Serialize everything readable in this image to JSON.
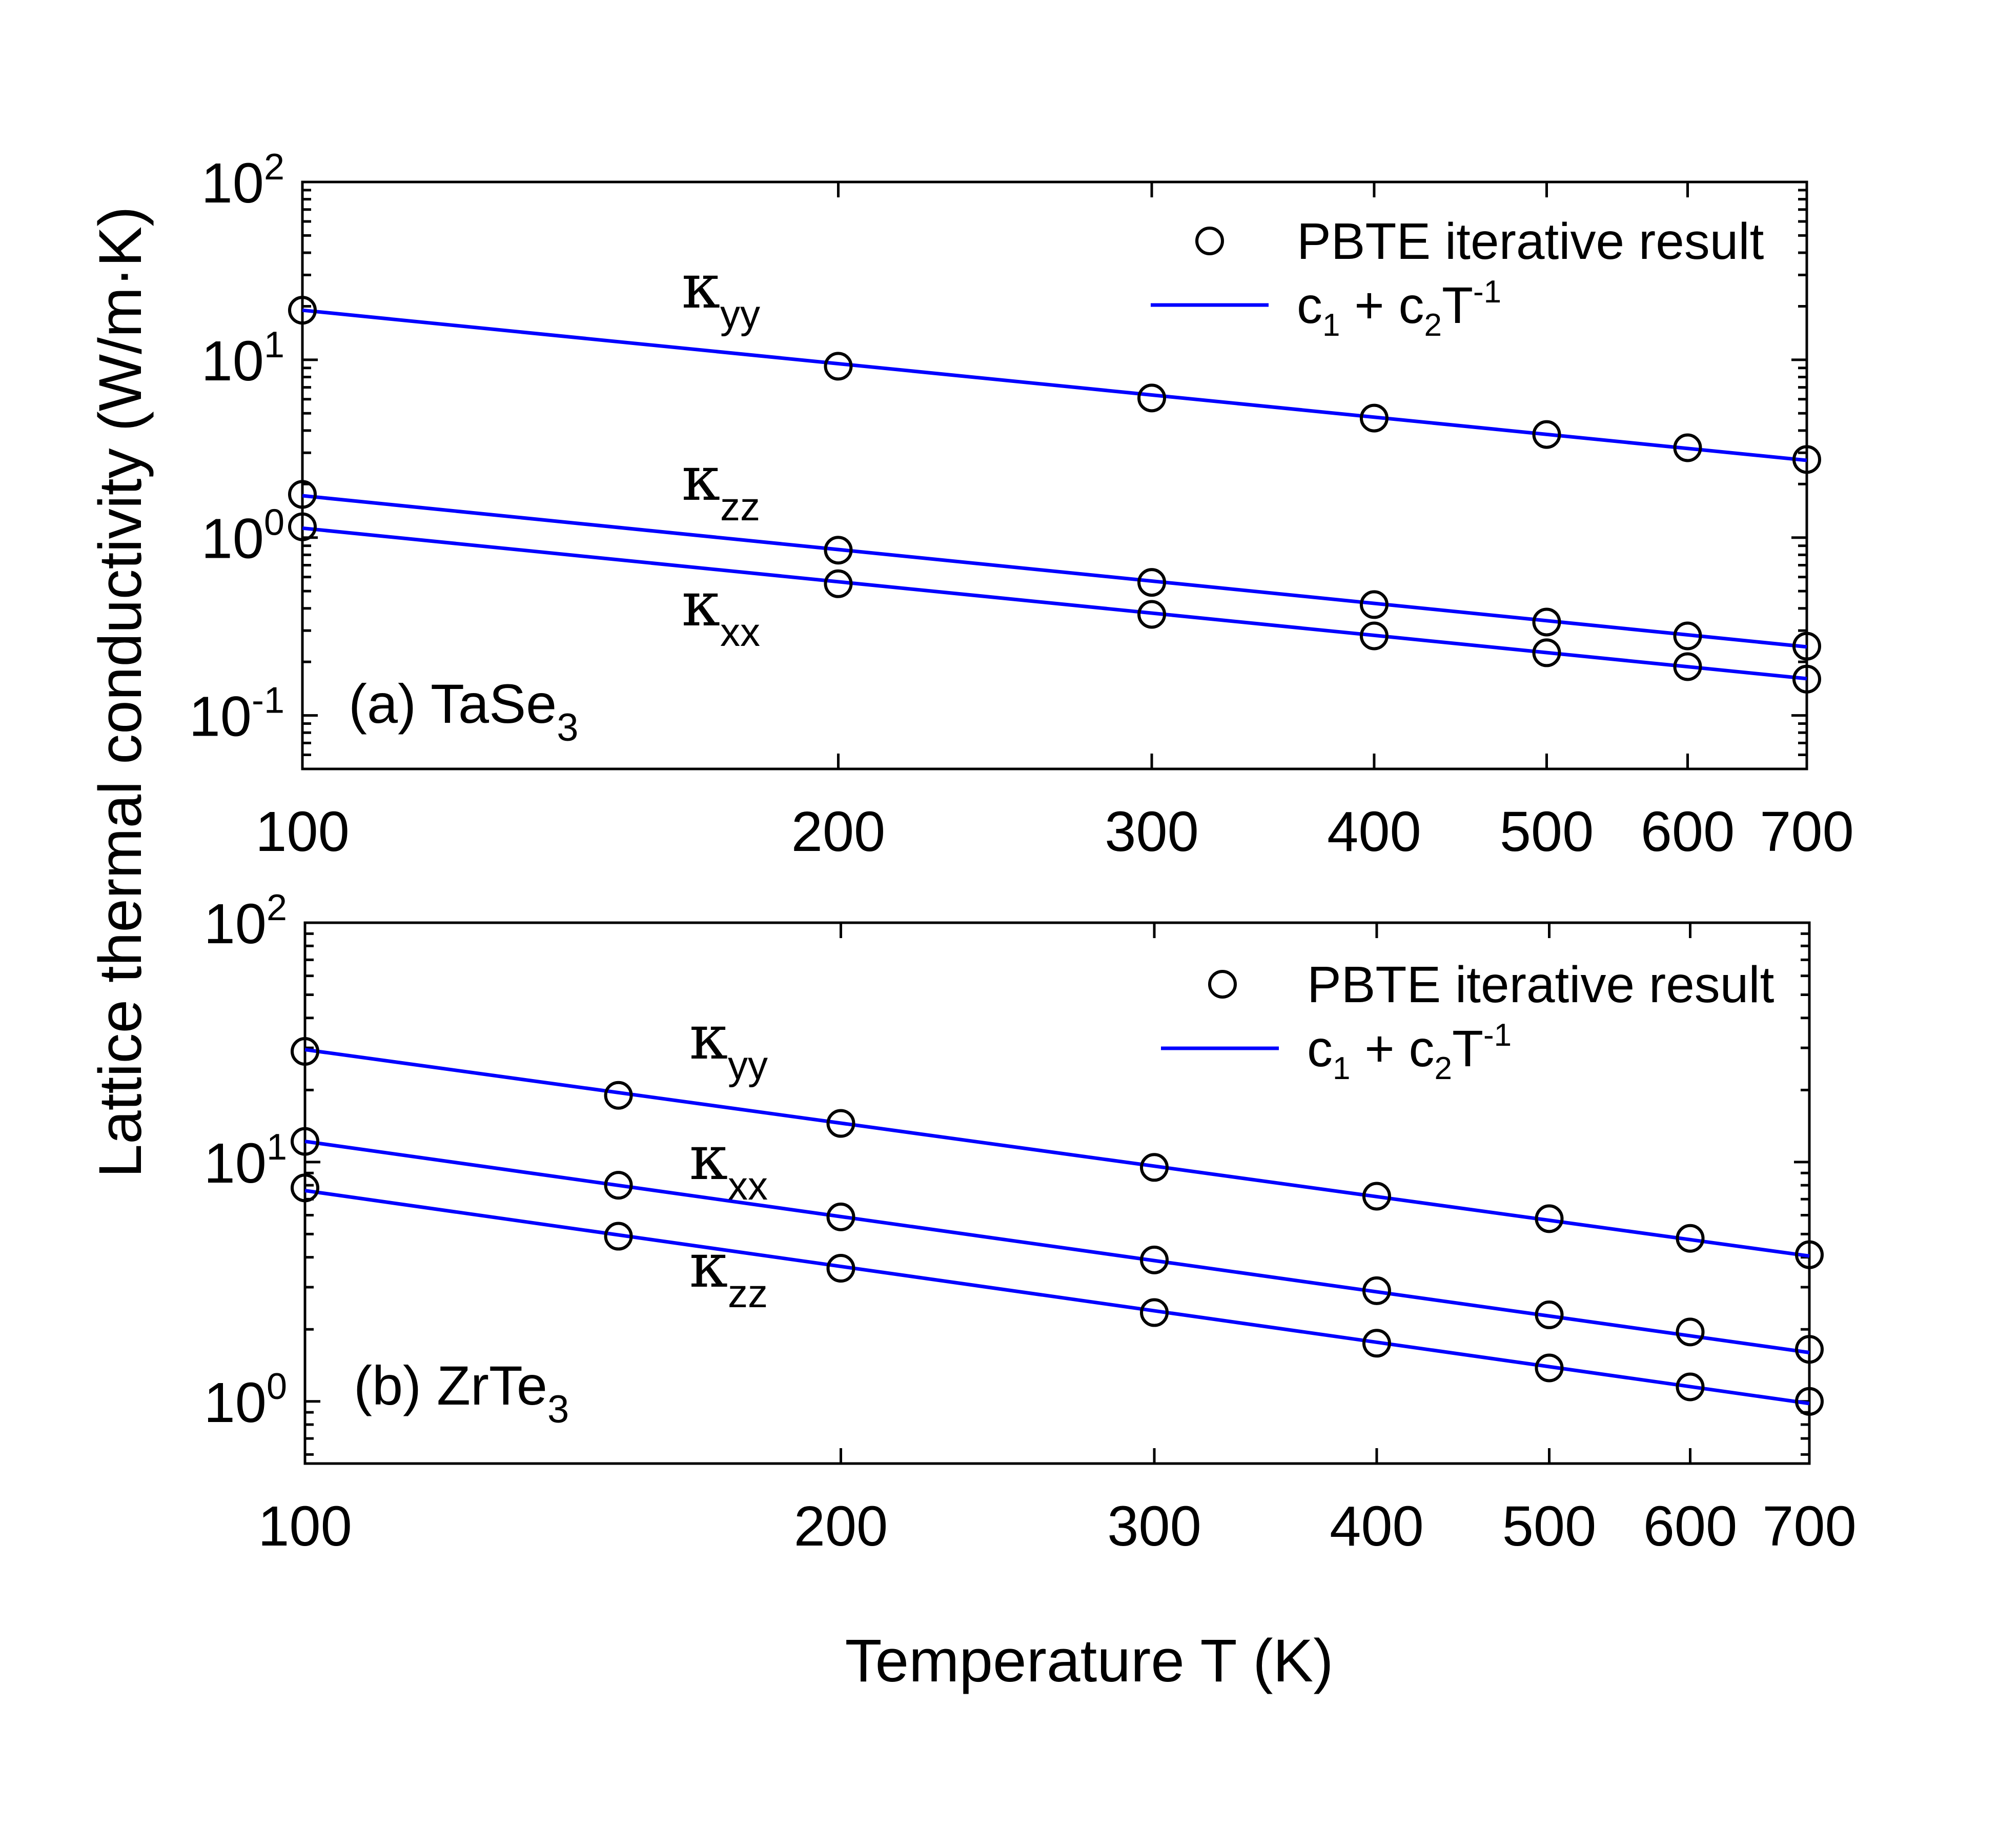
{
  "chart_data": {
    "ylabel": "Lattice thermal conductivity (W/m·K)",
    "xlabel": "Temperature T (K)",
    "line_color": "#0000ff",
    "marker_color": "#000000",
    "panels": [
      {
        "type": "scatter",
        "scale": "log-log",
        "label_prefix": "(a) TaSe",
        "label_subscript": "3",
        "legend": {
          "marker_label": "PBTE iterative result",
          "line_label_c": "c",
          "line_label_sub1": "1",
          "line_label_plus": " + c",
          "line_label_sub2": "2",
          "line_label_T": "T",
          "line_label_sup": "-1",
          "placement": "top-right"
        },
        "xlim": [
          100,
          700
        ],
        "ylim": [
          0.05,
          100
        ],
        "x_ticks": [
          100,
          200,
          300,
          400,
          500,
          600,
          700
        ],
        "y_ticks": [
          {
            "value": 0.1,
            "base": "10",
            "exp": "-1"
          },
          {
            "value": 1,
            "base": "10",
            "exp": "0"
          },
          {
            "value": 10,
            "base": "10",
            "exp": "1"
          },
          {
            "value": 100,
            "base": "10",
            "exp": "2"
          }
        ],
        "series": [
          {
            "name": "κyy",
            "symbol": "κ",
            "sub": "yy",
            "x": [
              100,
              200,
              300,
              400,
              500,
              600,
              700
            ],
            "y": [
              19,
              9.2,
              6.1,
              4.7,
              3.8,
              3.2,
              2.75
            ],
            "fit": [
              19,
              2.72
            ]
          },
          {
            "name": "κzz",
            "symbol": "κ",
            "sub": "zz",
            "x": [
              100,
              200,
              300,
              400,
              500,
              600,
              700
            ],
            "y": [
              1.75,
              0.85,
              0.56,
              0.42,
              0.335,
              0.28,
              0.245
            ],
            "fit": [
              1.72,
              0.243
            ]
          },
          {
            "name": "κxx",
            "symbol": "κ",
            "sub": "xx",
            "x": [
              100,
              200,
              300,
              400,
              500,
              600,
              700
            ],
            "y": [
              1.15,
              0.55,
              0.37,
              0.28,
              0.225,
              0.188,
              0.16
            ],
            "fit": [
              1.13,
              0.161
            ]
          }
        ]
      },
      {
        "type": "scatter",
        "scale": "log-log",
        "label_prefix": "(b) ZrTe",
        "label_subscript": "3",
        "legend": {
          "marker_label": "PBTE iterative result",
          "line_label_c": "c",
          "line_label_sub1": "1",
          "line_label_plus": " + c",
          "line_label_sub2": "2",
          "line_label_T": "T",
          "line_label_sup": "-1",
          "placement": "top-right"
        },
        "xlim": [
          100,
          700
        ],
        "ylim": [
          0.55,
          100
        ],
        "x_ticks": [
          100,
          200,
          300,
          400,
          500,
          600,
          700
        ],
        "y_ticks": [
          {
            "value": 1,
            "base": "10",
            "exp": "0"
          },
          {
            "value": 10,
            "base": "10",
            "exp": "1"
          },
          {
            "value": 100,
            "base": "10",
            "exp": "2"
          }
        ],
        "series": [
          {
            "name": "κyy",
            "symbol": "κ",
            "sub": "yy",
            "x": [
              100,
              150,
              200,
              300,
              400,
              500,
              600,
              700
            ],
            "y": [
              29,
              19,
              14.5,
              9.5,
              7.2,
              5.8,
              4.8,
              4.1
            ],
            "fit": [
              29.5,
              4.05
            ]
          },
          {
            "name": "κxx",
            "symbol": "κ",
            "sub": "xx",
            "x": [
              100,
              150,
              200,
              300,
              400,
              500,
              600,
              700
            ],
            "y": [
              12.2,
              8.0,
              5.9,
              3.9,
              2.9,
              2.3,
              1.95,
              1.65
            ],
            "fit": [
              12.2,
              1.6
            ]
          },
          {
            "name": "κzz",
            "symbol": "κ",
            "sub": "zz",
            "x": [
              100,
              150,
              200,
              300,
              400,
              500,
              600,
              700
            ],
            "y": [
              7.8,
              4.9,
              3.6,
              2.35,
              1.75,
              1.38,
              1.15,
              1.0
            ],
            "fit": [
              7.6,
              0.98
            ]
          }
        ]
      }
    ]
  }
}
